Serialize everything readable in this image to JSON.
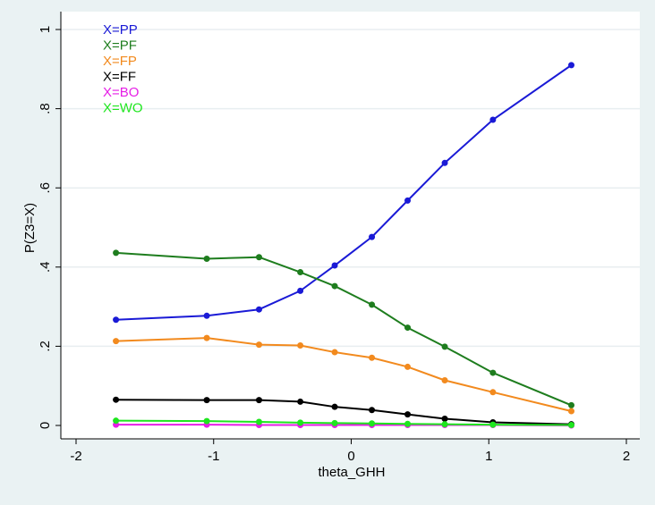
{
  "chart_data": {
    "type": "line",
    "xlabel": "theta_GHH",
    "ylabel": "P(Z3=X)",
    "xlim": [
      -2,
      2
    ],
    "ylim": [
      0,
      1
    ],
    "xticks": [
      -2,
      -1,
      0,
      1,
      2
    ],
    "yticks": [
      0,
      0.2,
      0.4,
      0.6,
      0.8,
      1
    ],
    "xtick_labels": [
      "-2",
      "-1",
      "0",
      "1",
      "2"
    ],
    "ytick_labels": [
      "0",
      ".2",
      ".4",
      ".6",
      ".8",
      "1"
    ],
    "grid": "horizontal",
    "legend_position": "top-left",
    "x": [
      -1.71,
      -1.05,
      -0.67,
      -0.37,
      -0.12,
      0.15,
      0.41,
      0.68,
      1.03,
      1.6
    ],
    "series": [
      {
        "name": "X=PP",
        "color": "#1a1ad6",
        "values": [
          0.267,
          0.277,
          0.293,
          0.34,
          0.404,
          0.476,
          0.568,
          0.663,
          0.772,
          0.91
        ]
      },
      {
        "name": "X=PF",
        "color": "#1e7d1e",
        "values": [
          0.436,
          0.421,
          0.425,
          0.387,
          0.352,
          0.305,
          0.247,
          0.199,
          0.133,
          0.051
        ]
      },
      {
        "name": "X=FP",
        "color": "#f28a1e",
        "values": [
          0.213,
          0.221,
          0.204,
          0.202,
          0.185,
          0.171,
          0.148,
          0.114,
          0.084,
          0.036
        ]
      },
      {
        "name": "X=FF",
        "color": "#000000",
        "values": [
          0.065,
          0.064,
          0.064,
          0.06,
          0.047,
          0.039,
          0.028,
          0.017,
          0.008,
          0.003
        ]
      },
      {
        "name": "X=BO",
        "color": "#e61ee6",
        "values": [
          0.002,
          0.002,
          0.001,
          0.001,
          0.001,
          0.001,
          0.001,
          0.001,
          0.001,
          0.0
        ]
      },
      {
        "name": "X=WO",
        "color": "#1ee61e",
        "values": [
          0.012,
          0.011,
          0.009,
          0.007,
          0.006,
          0.005,
          0.004,
          0.003,
          0.002,
          0.001
        ]
      }
    ]
  }
}
